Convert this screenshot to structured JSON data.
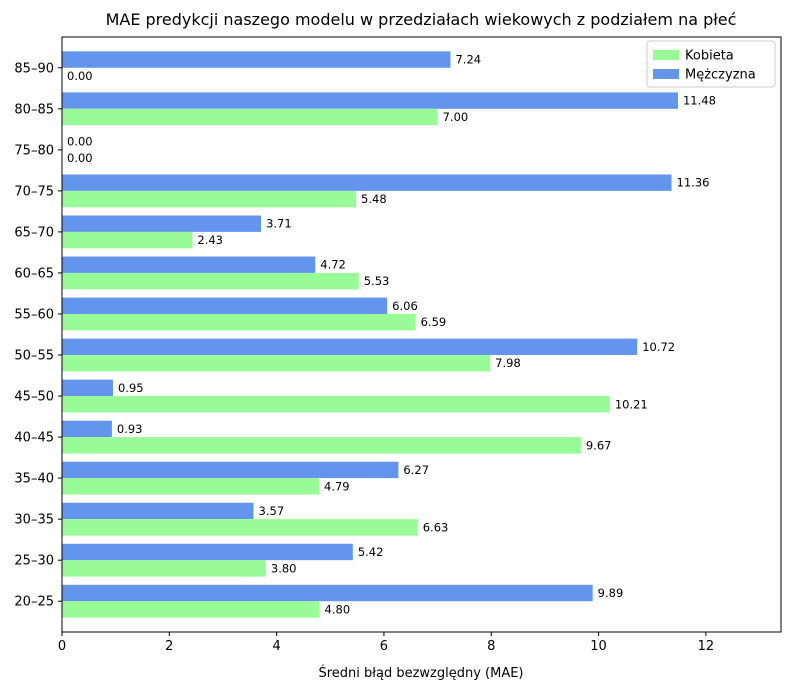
{
  "chart_data": {
    "type": "bar",
    "orientation": "horizontal",
    "title": "MAE predykcji naszego modelu w przedziałach wiekowych z podziałem na płeć",
    "xlabel": "Średni błąd bezwzględny (MAE)",
    "ylabel": "",
    "xlim": [
      0,
      13.4
    ],
    "xticks": [
      0,
      2,
      4,
      6,
      8,
      10,
      12
    ],
    "xtick_labels": [
      "0",
      "2",
      "4",
      "6",
      "8",
      "10",
      "12"
    ],
    "grid": false,
    "legend_position": "top-right",
    "categories": [
      "20–25",
      "25–30",
      "30–35",
      "35–40",
      "40–45",
      "45–50",
      "50–55",
      "55–60",
      "60–65",
      "65–70",
      "70–75",
      "75–80",
      "80–85",
      "85–90"
    ],
    "series": [
      {
        "name": "Kobieta",
        "color": "#98fb98",
        "values": [
          4.8,
          3.8,
          6.63,
          4.79,
          9.67,
          10.21,
          7.98,
          6.59,
          5.53,
          2.43,
          5.48,
          0.0,
          7.0,
          0.0
        ],
        "labels": [
          "4.80",
          "3.80",
          "6.63",
          "4.79",
          "9.67",
          "10.21",
          "7.98",
          "6.59",
          "5.53",
          "2.43",
          "5.48",
          "0.00",
          "7.00",
          "0.00"
        ]
      },
      {
        "name": "Mężczyzna",
        "color": "#6495ed",
        "values": [
          9.89,
          5.42,
          3.57,
          6.27,
          0.93,
          0.95,
          10.72,
          6.06,
          4.72,
          3.71,
          11.36,
          0.0,
          11.48,
          7.24
        ],
        "labels": [
          "9.89",
          "5.42",
          "3.57",
          "6.27",
          "0.93",
          "0.95",
          "10.72",
          "6.06",
          "4.72",
          "3.71",
          "11.36",
          "0.00",
          "11.48",
          "7.24"
        ]
      }
    ]
  }
}
